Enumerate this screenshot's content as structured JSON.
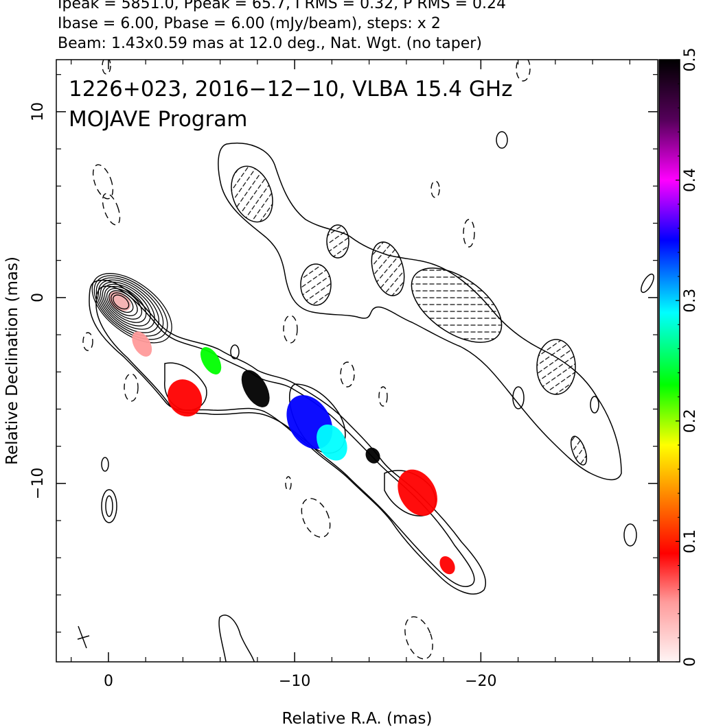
{
  "header": {
    "line1": "Ipeak = 5851.0, Ppeak = 65.7, I RMS = 0.32, P RMS = 0.24",
    "line2": "Ibase = 6.00, Pbase = 6.00 (mJy/beam), steps: x 2",
    "line3": "Beam: 1.43x0.59 mas at 12.0 deg., Nat. Wgt. (no taper)"
  },
  "plot": {
    "label_line1": "1226+023, 2016−12−10, VLBA 15.4 GHz",
    "label_line2": "MOJAVE Program"
  },
  "chart_data": {
    "type": "heatmap",
    "title": "",
    "xlabel": "Relative R.A. (mas)",
    "ylabel": "Relative Declination (mas)",
    "xlim": [
      2.8,
      -29.5
    ],
    "ylim": [
      -19.6,
      12.8
    ],
    "xticks": [
      0,
      -10,
      -20
    ],
    "xtick_labels": [
      "0",
      "−10",
      "−20"
    ],
    "yticks": [
      10,
      0,
      -10
    ],
    "ytick_labels": [
      "10",
      "0",
      "−10"
    ],
    "colorbar": {
      "range": [
        0,
        0.5
      ],
      "ticks": [
        0,
        0.1,
        0.2,
        0.3,
        0.4,
        0.5
      ],
      "tick_labels": [
        "0",
        "0.1",
        "0.2",
        "0.3",
        "0.4",
        "0.5"
      ]
    },
    "core_contours": {
      "center": [
        -0.6,
        -0.2
      ],
      "levels": 11
    },
    "jet_components": [
      {
        "ra": -1.8,
        "dec": -2.5,
        "frac": 0.08
      },
      {
        "ra": -4.1,
        "dec": -5.4,
        "frac": 0.13
      },
      {
        "ra": -5.5,
        "dec": -3.4,
        "frac": 0.24
      },
      {
        "ra": -7.9,
        "dec": -4.9,
        "frac": 0.5
      },
      {
        "ra": -10.8,
        "dec": -6.7,
        "frac": 0.36
      },
      {
        "ra": -12.0,
        "dec": -7.8,
        "frac": 0.29
      },
      {
        "ra": -14.2,
        "dec": -8.5,
        "frac": 0.5
      },
      {
        "ra": -16.6,
        "dec": -10.5,
        "frac": 0.1
      },
      {
        "ra": -18.2,
        "dec": -14.4,
        "frac": 0.12
      }
    ]
  }
}
